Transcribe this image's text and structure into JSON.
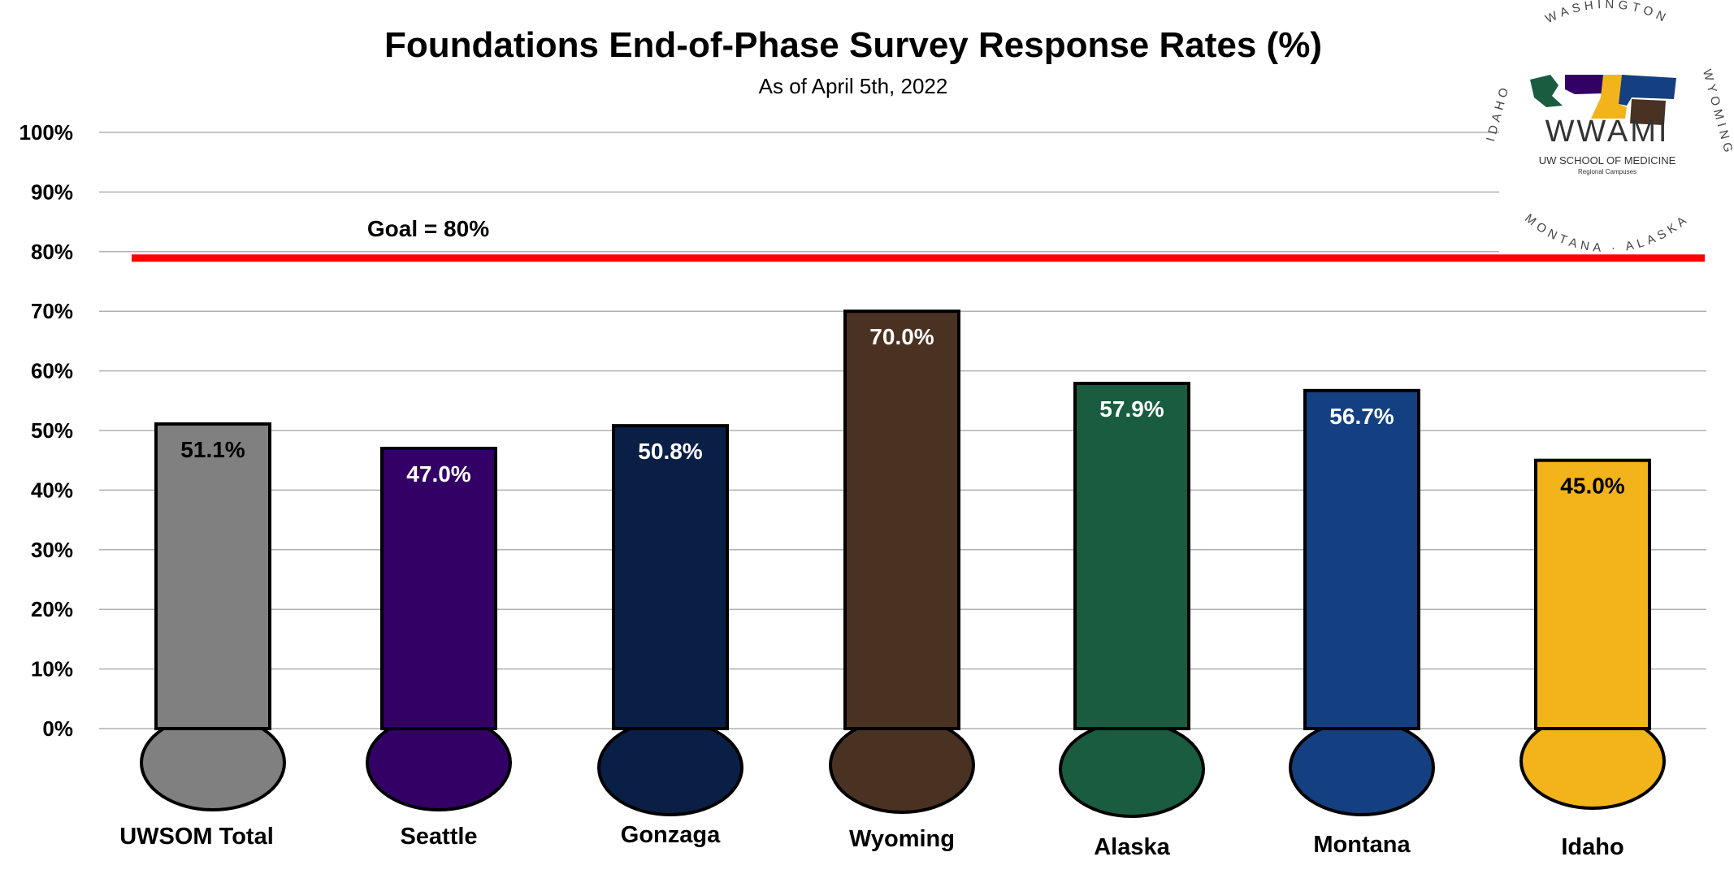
{
  "chart_data": {
    "type": "bar",
    "title": "Foundations End-of-Phase Survey Response Rates (%)",
    "subtitle": "As of April 5th, 2022",
    "categories": [
      "UWSOM Total",
      "Seattle",
      "Gonzaga",
      "Wyoming",
      "Alaska",
      "Montana",
      "Idaho"
    ],
    "values": [
      51.1,
      47.0,
      50.8,
      70.0,
      57.9,
      56.7,
      45.0
    ],
    "value_labels": [
      "51.1%",
      "47.0%",
      "50.8%",
      "70.0%",
      "57.9%",
      "56.7%",
      "45.0%"
    ],
    "bar_colors": [
      "#808080",
      "#330066",
      "#0a1f45",
      "#4a3222",
      "#1a5c40",
      "#143f80",
      "#f2b31b"
    ],
    "label_colors": [
      "#000000",
      "#ffffff",
      "#ffffff",
      "#ffffff",
      "#ffffff",
      "#ffffff",
      "#000000"
    ],
    "y_ticks": [
      0,
      10,
      20,
      30,
      40,
      50,
      60,
      70,
      80,
      90,
      100
    ],
    "y_tick_labels": [
      "0%",
      "10%",
      "20%",
      "30%",
      "40%",
      "50%",
      "60%",
      "70%",
      "80%",
      "90%",
      "100%"
    ],
    "ylim": [
      0,
      100
    ],
    "grid": true,
    "goal": {
      "value": 80,
      "label": "Goal = 80%",
      "color": "#ff0000"
    }
  },
  "logo": {
    "arc_top": "WASHINGTON",
    "arc_right": "WYOMING",
    "arc_bottom": "MONTANA · ALASKA",
    "arc_left": "IDAHO",
    "name": "WWAMI",
    "line1": "UW SCHOOL OF MEDICINE",
    "line2": "Regional Campuses"
  }
}
